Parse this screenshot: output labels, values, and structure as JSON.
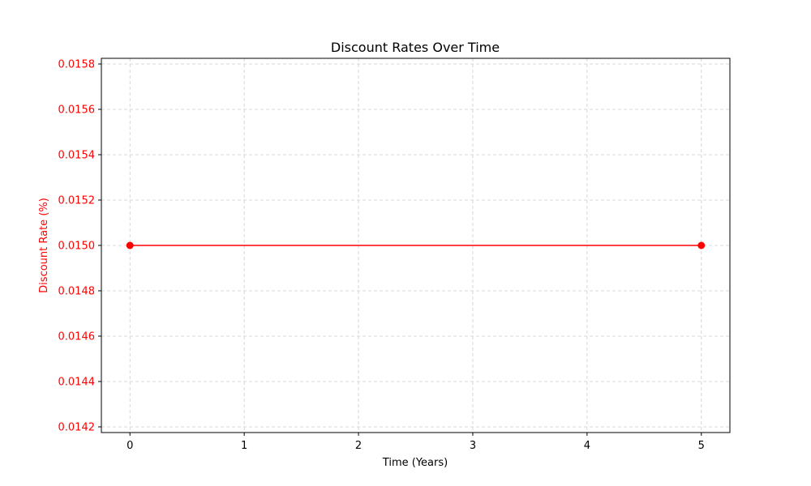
{
  "chart_data": {
    "type": "line",
    "title": "Discount Rates Over Time",
    "xlabel": "Time (Years)",
    "ylabel": "Discount Rate (%)",
    "x_ticks": [
      "0",
      "1",
      "2",
      "3",
      "4",
      "5"
    ],
    "y_ticks": [
      "0.0142",
      "0.0144",
      "0.0146",
      "0.0148",
      "0.0150",
      "0.0152",
      "0.0154",
      "0.0156",
      "0.0158"
    ],
    "xlim": [
      -0.25,
      5.25
    ],
    "ylim": [
      0.014175,
      0.015825
    ],
    "grid": true,
    "series": [
      {
        "color": "#ff0000",
        "marker": "circle",
        "x": [
          0,
          5
        ],
        "y": [
          0.015,
          0.015
        ]
      }
    ],
    "colors": {
      "ylabel": "#ff0000",
      "ytick_labels": "#ff0000",
      "xtick_labels": "#000000"
    }
  }
}
